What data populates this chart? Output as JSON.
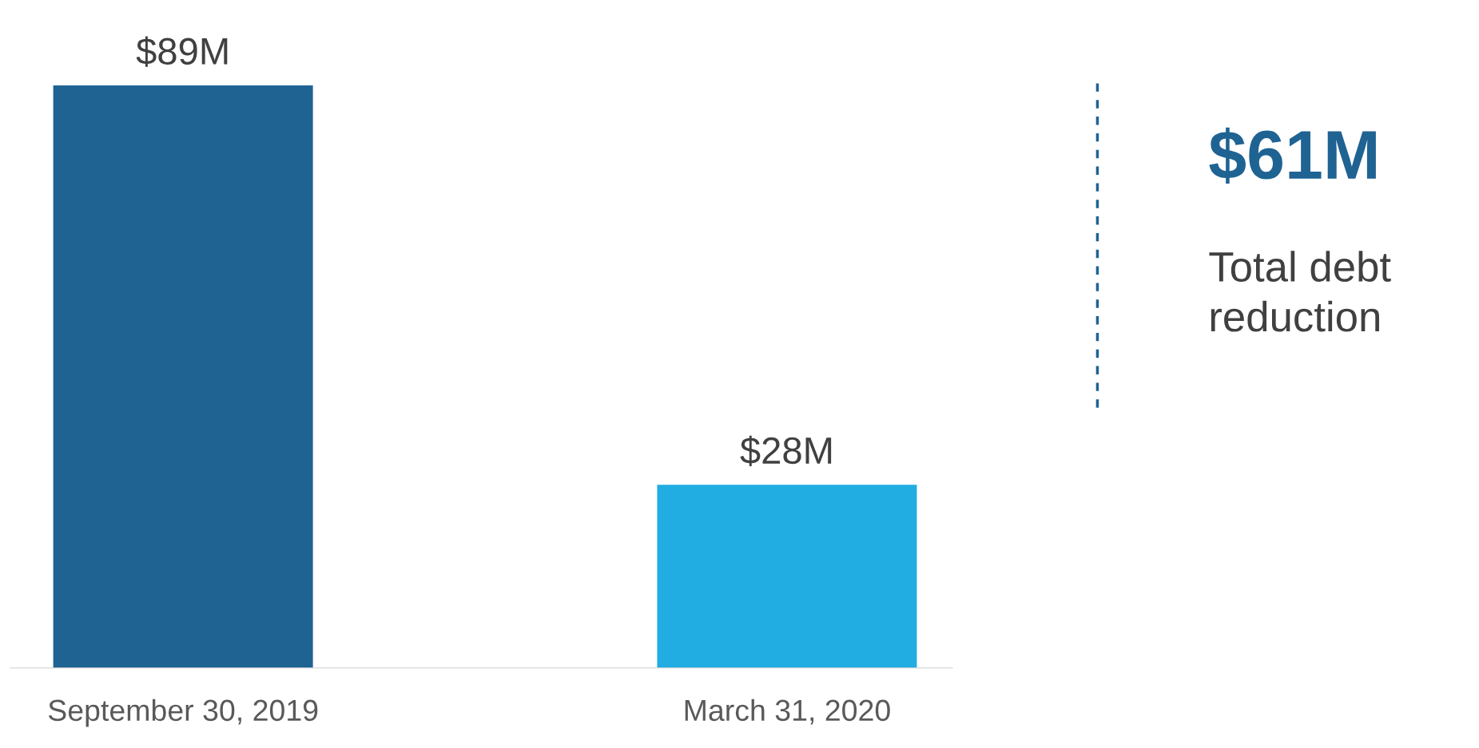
{
  "chart_data": {
    "type": "bar",
    "categories": [
      "September 30, 2019",
      "March 31, 2020"
    ],
    "values": [
      89,
      28
    ],
    "colors": [
      "#1f6393",
      "#21ace2"
    ],
    "value_labels": [
      "$89M",
      "$28M"
    ],
    "annotations": [
      "$61M",
      "Total debt\nreduction"
    ],
    "grid": false,
    "legend": false,
    "tick_labels": "x"
  }
}
